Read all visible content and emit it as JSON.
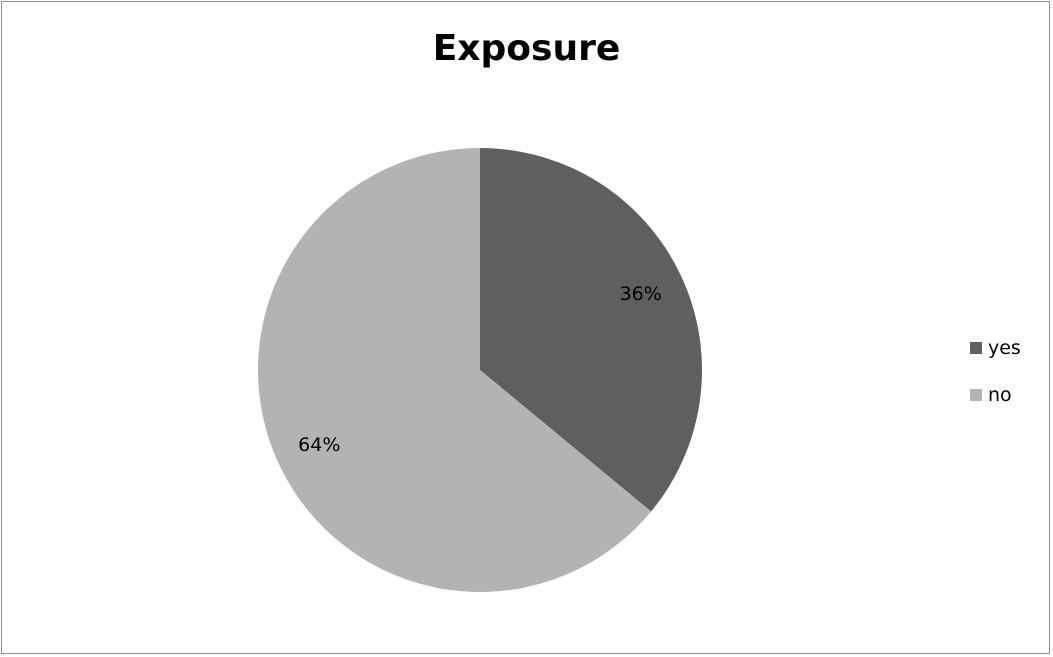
{
  "chart_data": {
    "type": "pie",
    "title": "Exposure",
    "categories": [
      "yes",
      "no"
    ],
    "values": [
      36,
      64
    ],
    "data_labels": [
      "36%",
      "64%"
    ],
    "colors": [
      "#5f5f5f",
      "#b3b3b3"
    ],
    "legend_placement": "right"
  }
}
